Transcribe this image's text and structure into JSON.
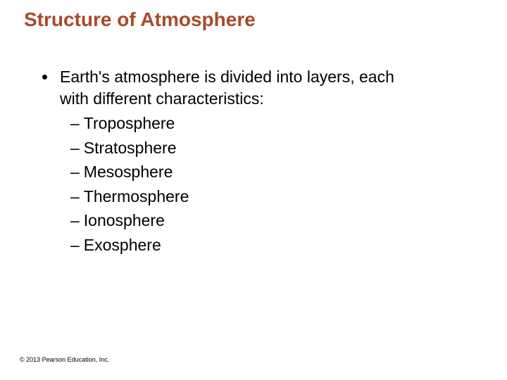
{
  "title": "Structure of Atmosphere",
  "bullet": {
    "text_line1": "Earth's atmosphere is divided into layers, each",
    "text_line2": "with different characteristics:"
  },
  "subitems": [
    "Troposphere",
    "Stratosphere",
    "Mesosphere",
    "Thermosphere",
    "Ionosphere",
    "Exosphere"
  ],
  "copyright": "© 2013 Pearson Education, Inc.",
  "colors": {
    "title": "#a84a29",
    "text": "#000000",
    "background": "#ffffff"
  }
}
